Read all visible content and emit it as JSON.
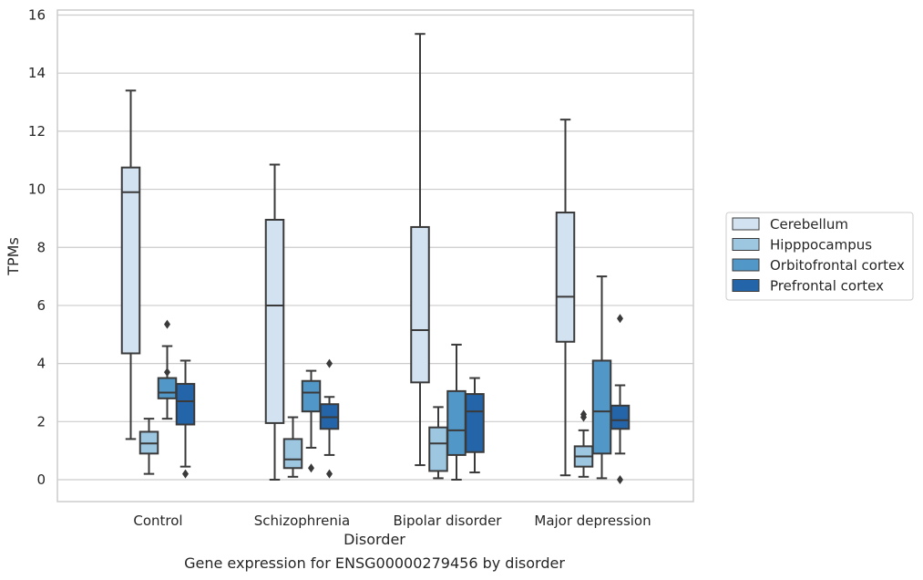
{
  "chart_data": {
    "type": "box",
    "title": "",
    "xlabel": "Disorder",
    "ylabel": "TPMs",
    "caption": "Gene expression for ENSG00000279456 by disorder",
    "ylim": [
      -0.7,
      16.15
    ],
    "yticks": [
      0,
      2,
      4,
      6,
      8,
      10,
      12,
      14,
      16
    ],
    "grid": "horizontal",
    "legend_placement": "right",
    "categories": [
      "Control",
      "Schizophrenia",
      "Bipolar disorder",
      "Major depression"
    ],
    "series": [
      {
        "name": "Cerebellum",
        "color": "#d3e2f1",
        "boxes": [
          {
            "whisker_low": 1.4,
            "q1": 4.35,
            "median": 9.9,
            "q3": 10.75,
            "whisker_high": 13.4,
            "outliers": []
          },
          {
            "whisker_low": 0.0,
            "q1": 1.95,
            "median": 6.0,
            "q3": 8.95,
            "whisker_high": 10.85,
            "outliers": []
          },
          {
            "whisker_low": 0.5,
            "q1": 3.35,
            "median": 5.15,
            "q3": 8.7,
            "whisker_high": 15.35,
            "outliers": []
          },
          {
            "whisker_low": 0.15,
            "q1": 4.75,
            "median": 6.3,
            "q3": 9.2,
            "whisker_high": 12.4,
            "outliers": []
          }
        ]
      },
      {
        "name": "Hipppocampus",
        "color": "#9dc6e0",
        "boxes": [
          {
            "whisker_low": 0.2,
            "q1": 0.9,
            "median": 1.25,
            "q3": 1.65,
            "whisker_high": 2.1,
            "outliers": []
          },
          {
            "whisker_low": 0.1,
            "q1": 0.4,
            "median": 0.7,
            "q3": 1.4,
            "whisker_high": 2.15,
            "outliers": []
          },
          {
            "whisker_low": 0.05,
            "q1": 0.3,
            "median": 1.25,
            "q3": 1.8,
            "whisker_high": 2.5,
            "outliers": []
          },
          {
            "whisker_low": 0.1,
            "q1": 0.45,
            "median": 0.8,
            "q3": 1.15,
            "whisker_high": 1.7,
            "outliers": [
              2.15,
              2.25
            ]
          }
        ]
      },
      {
        "name": "Orbitofrontal cortex",
        "color": "#5198c8",
        "boxes": [
          {
            "whisker_low": 2.1,
            "q1": 2.8,
            "median": 3.0,
            "q3": 3.5,
            "whisker_high": 4.6,
            "outliers": [
              3.7,
              5.35
            ]
          },
          {
            "whisker_low": 1.1,
            "q1": 2.35,
            "median": 3.0,
            "q3": 3.4,
            "whisker_high": 3.75,
            "outliers": [
              0.4
            ]
          },
          {
            "whisker_low": 0.0,
            "q1": 0.85,
            "median": 1.7,
            "q3": 3.05,
            "whisker_high": 4.65,
            "outliers": []
          },
          {
            "whisker_low": 0.05,
            "q1": 0.9,
            "median": 2.35,
            "q3": 4.1,
            "whisker_high": 7.0,
            "outliers": []
          }
        ]
      },
      {
        "name": "Prefrontal cortex",
        "color": "#2464a8",
        "boxes": [
          {
            "whisker_low": 0.45,
            "q1": 1.9,
            "median": 2.7,
            "q3": 3.3,
            "whisker_high": 4.1,
            "outliers": [
              0.2
            ]
          },
          {
            "whisker_low": 0.85,
            "q1": 1.75,
            "median": 2.15,
            "q3": 2.6,
            "whisker_high": 2.85,
            "outliers": [
              0.2,
              4.0
            ]
          },
          {
            "whisker_low": 0.25,
            "q1": 0.95,
            "median": 2.35,
            "q3": 2.95,
            "whisker_high": 3.5,
            "outliers": []
          },
          {
            "whisker_low": 0.9,
            "q1": 1.75,
            "median": 2.05,
            "q3": 2.55,
            "whisker_high": 3.25,
            "outliers": [
              0.0,
              5.55
            ]
          }
        ]
      }
    ]
  }
}
